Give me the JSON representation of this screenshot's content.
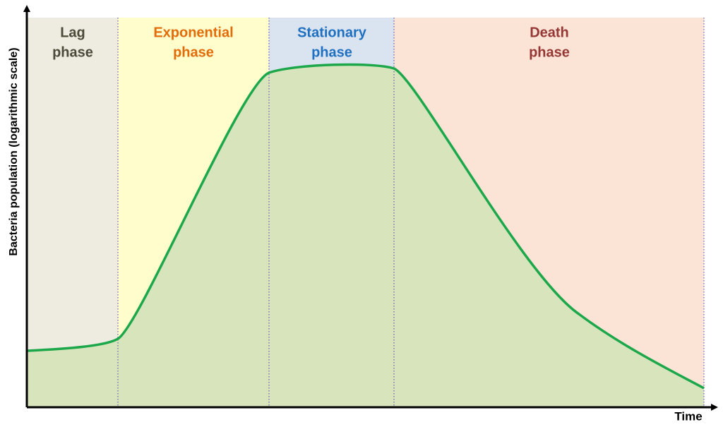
{
  "phases": [
    {
      "lines": [
        "Lag",
        "phase"
      ]
    },
    {
      "lines": [
        "Exponential",
        "phase"
      ]
    },
    {
      "lines": [
        "Stationary",
        "phase"
      ]
    },
    {
      "lines": [
        "Death",
        "phase"
      ]
    }
  ],
  "y_axis_label": "Bacteria population (logarithmic scale)",
  "x_axis_label": "Time"
}
